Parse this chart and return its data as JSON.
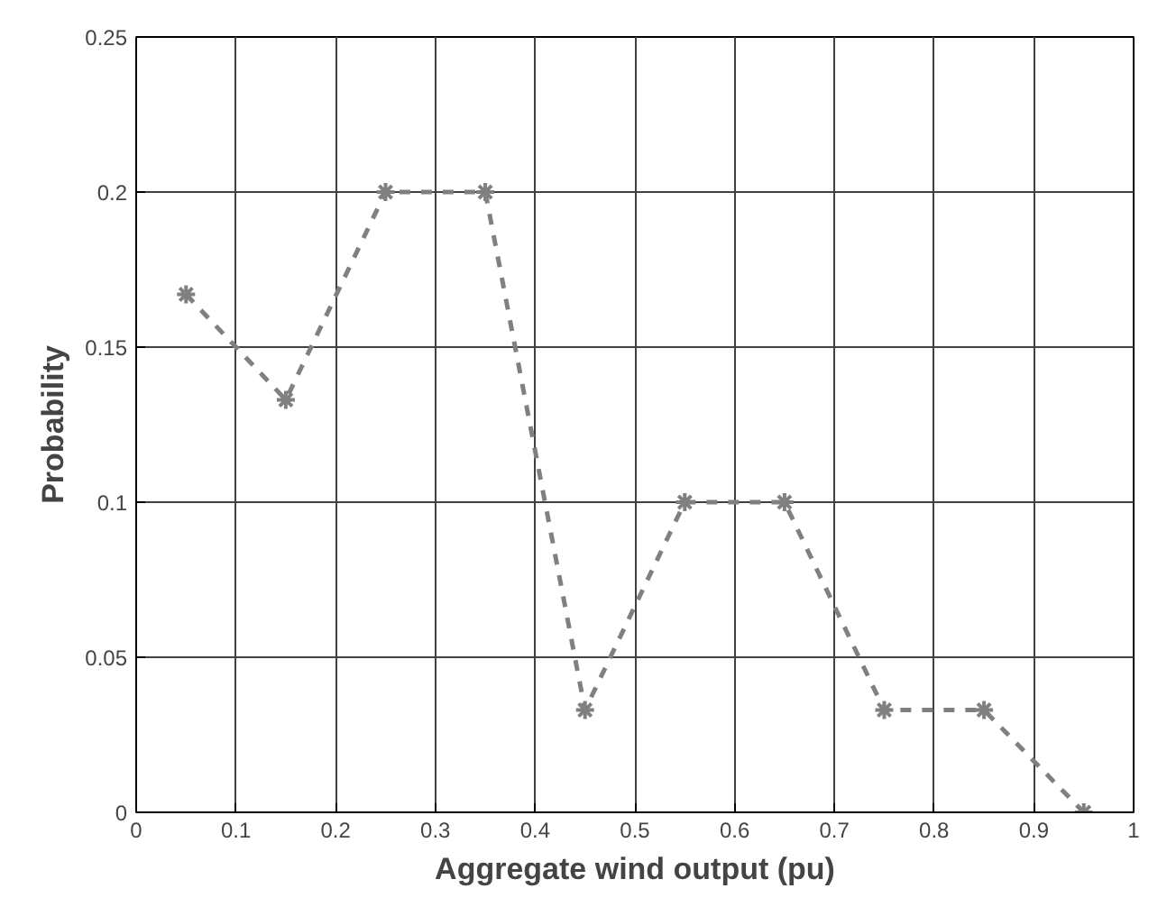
{
  "chart_data": {
    "type": "line",
    "xlabel": "Aggregate wind output (pu)",
    "ylabel": "Probability",
    "x": [
      0.05,
      0.15,
      0.25,
      0.35,
      0.45,
      0.55,
      0.65,
      0.75,
      0.85,
      0.95
    ],
    "series": [
      {
        "color": "#808080",
        "values": [
          0.167,
          0.133,
          0.2,
          0.2,
          0.033,
          0.1,
          0.1,
          0.033,
          0.033,
          0
        ]
      }
    ],
    "xlim": [
      0,
      1
    ],
    "ylim": [
      0,
      0.25
    ],
    "xticks": [
      0,
      0.1,
      0.2,
      0.3,
      0.4,
      0.5,
      0.6,
      0.7,
      0.8,
      0.9,
      1
    ],
    "yticks": [
      0,
      0.05,
      0.1,
      0.15,
      0.2,
      0.25
    ],
    "grid": true,
    "marker": "cross",
    "line_style": "dashed"
  }
}
